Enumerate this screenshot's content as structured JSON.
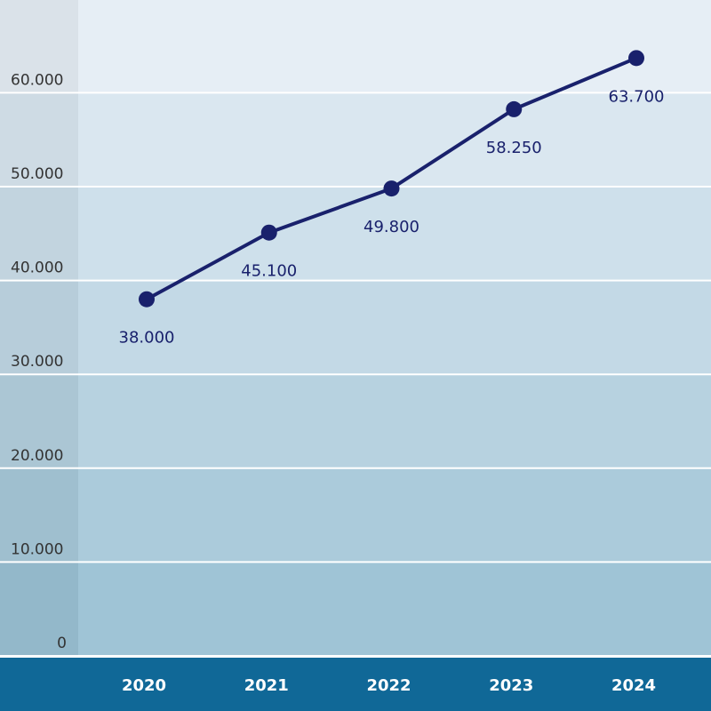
{
  "chart_data": {
    "type": "line",
    "title": "",
    "xlabel": "",
    "ylabel": "",
    "categories": [
      "2020",
      "2021",
      "2022",
      "2023",
      "2024"
    ],
    "values": [
      38000,
      45100,
      49800,
      58250,
      63700
    ],
    "data_labels": [
      "38.000",
      "45.100",
      "49.800",
      "58.250",
      "63.700"
    ],
    "ylim": [
      0,
      70000
    ],
    "yticks": [
      0,
      10000,
      20000,
      30000,
      40000,
      50000,
      60000
    ],
    "ytick_labels": [
      "0",
      "10.000",
      "20.000",
      "30.000",
      "40.000",
      "50.000",
      "60.000"
    ],
    "grid": true,
    "colors": {
      "line": "#19216c",
      "axis_bar": "#106897",
      "band_top": "#e6eef5",
      "band_bottom": "#9fc4d6",
      "label_text": "#19216c",
      "tick_text": "#333333"
    }
  }
}
